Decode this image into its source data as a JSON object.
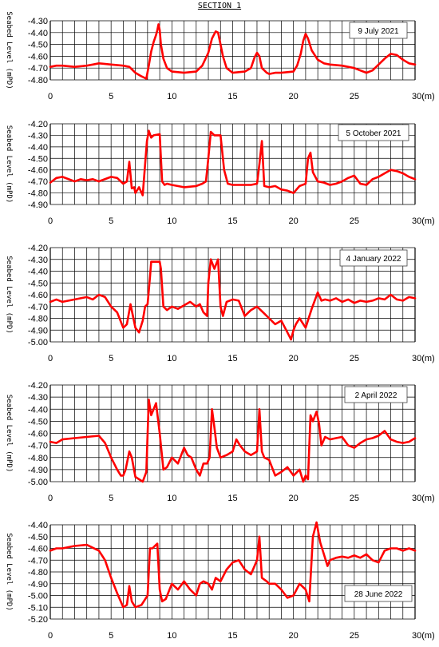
{
  "figure": {
    "title": "SECTION 1"
  },
  "colors": {
    "profile": "#ff0000",
    "grid": "#000000"
  },
  "chart_data": [
    {
      "type": "line",
      "date_label": "9 July 2021",
      "ylabel": "Seabed Level (mPD)",
      "xlim": [
        0,
        30
      ],
      "ylim": [
        -4.8,
        -4.3
      ],
      "yticks": [
        -4.3,
        -4.4,
        -4.5,
        -4.6,
        -4.7,
        -4.8
      ],
      "xticks": [
        0,
        5,
        10,
        15,
        20,
        25,
        30
      ],
      "xtick_labels": [
        "0",
        "5",
        "10",
        "15",
        "20",
        "25",
        "30(m)"
      ],
      "grid": true,
      "series": [
        {
          "x": [
            0,
            0.5,
            1,
            2,
            3,
            3.5,
            4,
            5,
            6,
            6.5,
            7,
            7.5,
            7.9,
            8.1,
            8.3,
            8.5,
            8.7,
            8.8,
            8.9,
            9.0,
            9.1,
            9.3,
            9.6,
            10,
            11,
            12,
            12.5,
            13,
            13.3,
            13.6,
            13.8,
            14,
            14.2,
            14.5,
            15,
            16,
            16.5,
            16.8,
            17,
            17.2,
            17.4,
            17.8,
            18,
            18.5,
            19,
            20,
            20.3,
            20.6,
            20.8,
            21,
            21.2,
            21.5,
            22,
            22.5,
            23,
            24,
            25,
            25.5,
            26,
            26.5,
            27,
            27.5,
            28,
            28.5,
            29,
            29.5,
            30
          ],
          "y": [
            -4.69,
            -4.68,
            -4.68,
            -4.69,
            -4.68,
            -4.67,
            -4.66,
            -4.67,
            -4.68,
            -4.69,
            -4.74,
            -4.77,
            -4.79,
            -4.68,
            -4.56,
            -4.48,
            -4.42,
            -4.38,
            -4.33,
            -4.38,
            -4.5,
            -4.62,
            -4.7,
            -4.73,
            -4.74,
            -4.73,
            -4.68,
            -4.57,
            -4.45,
            -4.39,
            -4.4,
            -4.5,
            -4.6,
            -4.7,
            -4.74,
            -4.73,
            -4.7,
            -4.61,
            -4.57,
            -4.6,
            -4.7,
            -4.74,
            -4.75,
            -4.74,
            -4.74,
            -4.73,
            -4.68,
            -4.58,
            -4.47,
            -4.41,
            -4.45,
            -4.55,
            -4.63,
            -4.66,
            -4.67,
            -4.68,
            -4.7,
            -4.72,
            -4.74,
            -4.72,
            -4.67,
            -4.62,
            -4.58,
            -4.59,
            -4.63,
            -4.66,
            -4.67
          ]
        }
      ]
    },
    {
      "type": "line",
      "date_label": "5 October 2021",
      "ylabel": "Seabed Level (mPD)",
      "xlim": [
        0,
        30
      ],
      "ylim": [
        -4.9,
        -4.2
      ],
      "yticks": [
        -4.2,
        -4.3,
        -4.4,
        -4.5,
        -4.6,
        -4.7,
        -4.8,
        -4.9
      ],
      "xticks": [
        0,
        5,
        10,
        15,
        20,
        25,
        30
      ],
      "xtick_labels": [
        "0",
        "5",
        "10",
        "15",
        "20",
        "25",
        "30(m)"
      ],
      "grid": true,
      "series": [
        {
          "x": [
            0,
            0.5,
            1,
            2,
            2.5,
            3,
            3.5,
            4,
            5,
            5.5,
            6,
            6.3,
            6.5,
            6.7,
            6.9,
            7,
            7.3,
            7.6,
            7.8,
            7.95,
            8.1,
            8.3,
            8.5,
            9,
            9.2,
            9.4,
            9.6,
            10,
            11,
            12,
            12.5,
            12.8,
            13,
            13.2,
            13.5,
            14,
            14.3,
            14.6,
            15,
            15.5,
            16,
            16.5,
            17,
            17.2,
            17.4,
            17.6,
            18,
            18.5,
            19,
            19.5,
            20,
            20.5,
            21,
            21.2,
            21.4,
            21.6,
            22,
            22.5,
            23,
            23.5,
            24,
            24.5,
            25,
            25.5,
            26,
            26.5,
            27,
            27.5,
            28,
            28.5,
            29,
            29.5,
            30
          ],
          "y": [
            -4.71,
            -4.67,
            -4.66,
            -4.7,
            -4.68,
            -4.69,
            -4.68,
            -4.7,
            -4.66,
            -4.67,
            -4.72,
            -4.7,
            -4.53,
            -4.76,
            -4.75,
            -4.8,
            -4.75,
            -4.82,
            -4.55,
            -4.35,
            -4.26,
            -4.32,
            -4.3,
            -4.29,
            -4.7,
            -4.73,
            -4.72,
            -4.73,
            -4.75,
            -4.74,
            -4.72,
            -4.7,
            -4.5,
            -4.27,
            -4.3,
            -4.3,
            -4.6,
            -4.72,
            -4.73,
            -4.73,
            -4.73,
            -4.73,
            -4.72,
            -4.55,
            -4.35,
            -4.74,
            -4.75,
            -4.74,
            -4.77,
            -4.78,
            -4.8,
            -4.74,
            -4.72,
            -4.5,
            -4.45,
            -4.62,
            -4.7,
            -4.71,
            -4.73,
            -4.72,
            -4.7,
            -4.67,
            -4.65,
            -4.72,
            -4.73,
            -4.68,
            -4.66,
            -4.63,
            -4.6,
            -4.61,
            -4.63,
            -4.66,
            -4.68
          ]
        }
      ]
    },
    {
      "type": "line",
      "date_label": "4 January 2022",
      "ylabel": "Seabed Level (mPD)",
      "xlim": [
        0,
        30
      ],
      "ylim": [
        -5.0,
        -4.2
      ],
      "yticks": [
        -4.2,
        -4.3,
        -4.4,
        -4.5,
        -4.6,
        -4.7,
        -4.8,
        -4.9,
        -5.0
      ],
      "xticks": [
        0,
        5,
        10,
        15,
        20,
        25,
        30
      ],
      "xtick_labels": [
        "0",
        "5",
        "10",
        "15",
        "20",
        "25",
        "30(m)"
      ],
      "grid": true,
      "series": [
        {
          "x": [
            0,
            0.5,
            1,
            2,
            3,
            3.5,
            4,
            4.5,
            5,
            5.5,
            6,
            6.3,
            6.6,
            7,
            7.3,
            7.6,
            7.8,
            8,
            8.2,
            8.3,
            8.5,
            9,
            9.1,
            9.3,
            9.6,
            10,
            10.5,
            11,
            11.5,
            12,
            12.3,
            12.6,
            12.9,
            13,
            13.2,
            13.5,
            13.8,
            14,
            14.2,
            14.5,
            15,
            15.5,
            16,
            16.5,
            17,
            17.5,
            18,
            18.5,
            19,
            19.5,
            19.8,
            20,
            20.2,
            20.5,
            21,
            21.5,
            22,
            22.3,
            22.6,
            23,
            23.5,
            24,
            24.5,
            25,
            25.5,
            26,
            26.5,
            27,
            27.5,
            28,
            28.5,
            29,
            29.5,
            30
          ],
          "y": [
            -4.66,
            -4.64,
            -4.66,
            -4.64,
            -4.62,
            -4.64,
            -4.6,
            -4.62,
            -4.7,
            -4.75,
            -4.88,
            -4.85,
            -4.68,
            -4.88,
            -4.92,
            -4.82,
            -4.7,
            -4.68,
            -4.45,
            -4.32,
            -4.32,
            -4.32,
            -4.38,
            -4.7,
            -4.73,
            -4.7,
            -4.72,
            -4.69,
            -4.66,
            -4.7,
            -4.68,
            -4.75,
            -4.78,
            -4.5,
            -4.3,
            -4.38,
            -4.3,
            -4.7,
            -4.78,
            -4.66,
            -4.64,
            -4.65,
            -4.78,
            -4.73,
            -4.7,
            -4.75,
            -4.8,
            -4.85,
            -4.82,
            -4.92,
            -4.98,
            -4.9,
            -4.85,
            -4.8,
            -4.88,
            -4.72,
            -4.58,
            -4.65,
            -4.64,
            -4.65,
            -4.63,
            -4.66,
            -4.64,
            -4.67,
            -4.65,
            -4.66,
            -4.65,
            -4.63,
            -4.64,
            -4.6,
            -4.64,
            -4.65,
            -4.62,
            -4.63
          ]
        }
      ]
    },
    {
      "type": "line",
      "date_label": "2 April 2022",
      "ylabel": "Seabed Level (mPD)",
      "xlim": [
        0,
        30
      ],
      "ylim": [
        -5.0,
        -4.2
      ],
      "yticks": [
        -4.2,
        -4.3,
        -4.4,
        -4.5,
        -4.6,
        -4.7,
        -4.8,
        -4.9,
        -5.0
      ],
      "xticks": [
        0,
        5,
        10,
        15,
        20,
        25,
        30
      ],
      "xtick_labels": [
        "0",
        "5",
        "10",
        "15",
        "20",
        "25",
        "30(m)"
      ],
      "grid": true,
      "series": [
        {
          "x": [
            0,
            0.5,
            1,
            2,
            3,
            4,
            4.5,
            5,
            5.5,
            5.8,
            6,
            6.2,
            6.5,
            6.7,
            7,
            7.3,
            7.6,
            7.9,
            8.1,
            8.3,
            8.5,
            8.7,
            9,
            9.3,
            9.6,
            10,
            10.5,
            11,
            11.3,
            11.6,
            12,
            12.3,
            12.6,
            12.9,
            13.1,
            13.3,
            13.5,
            13.7,
            14,
            14.5,
            15,
            15.3,
            15.6,
            16,
            16.5,
            17,
            17.2,
            17.4,
            17.6,
            18,
            18.5,
            19,
            19.5,
            20,
            20.5,
            20.8,
            21,
            21.2,
            21.4,
            21.6,
            21.9,
            22.1,
            22.3,
            22.6,
            23,
            23.5,
            24,
            24.5,
            25,
            25.5,
            26,
            26.5,
            27,
            27.5,
            28,
            28.5,
            29,
            29.5,
            30
          ],
          "y": [
            -4.67,
            -4.68,
            -4.65,
            -4.64,
            -4.63,
            -4.62,
            -4.68,
            -4.8,
            -4.9,
            -4.95,
            -4.95,
            -4.9,
            -4.75,
            -4.8,
            -4.96,
            -4.98,
            -5.0,
            -4.92,
            -4.32,
            -4.45,
            -4.4,
            -4.35,
            -4.6,
            -4.9,
            -4.88,
            -4.8,
            -4.85,
            -4.72,
            -4.78,
            -4.8,
            -4.9,
            -4.95,
            -4.85,
            -4.85,
            -4.8,
            -4.4,
            -4.55,
            -4.72,
            -4.8,
            -4.78,
            -4.75,
            -4.65,
            -4.7,
            -4.75,
            -4.78,
            -4.75,
            -4.4,
            -4.75,
            -4.8,
            -4.82,
            -4.95,
            -4.92,
            -4.88,
            -4.95,
            -4.9,
            -5.0,
            -4.95,
            -4.98,
            -4.45,
            -4.5,
            -4.42,
            -4.52,
            -4.7,
            -4.63,
            -4.65,
            -4.64,
            -4.63,
            -4.7,
            -4.72,
            -4.68,
            -4.65,
            -4.64,
            -4.62,
            -4.58,
            -4.65,
            -4.67,
            -4.68,
            -4.67,
            -4.64
          ]
        }
      ]
    },
    {
      "type": "line",
      "date_label": "28 June 2022",
      "ylabel": "Seabed Level (mPD)",
      "xlim": [
        0,
        30
      ],
      "ylim": [
        -5.2,
        -4.4
      ],
      "yticks": [
        -4.4,
        -4.5,
        -4.6,
        -4.7,
        -4.8,
        -4.9,
        -5.0,
        -5.1,
        -5.2
      ],
      "xticks": [
        0,
        5,
        10,
        15,
        20,
        25,
        30
      ],
      "xtick_labels": [
        "0",
        "5",
        "10",
        "15",
        "20",
        "25",
        "30(m)"
      ],
      "grid": true,
      "series": [
        {
          "x": [
            0,
            0.5,
            1,
            2,
            3,
            4,
            4.5,
            5,
            5.5,
            6,
            6.3,
            6.5,
            6.7,
            7,
            7.5,
            8,
            8.2,
            8.4,
            8.6,
            8.8,
            9,
            9.2,
            9.5,
            10,
            10.5,
            11,
            11.5,
            12,
            12.3,
            12.6,
            13,
            13.3,
            13.6,
            14,
            14.5,
            15,
            15.5,
            16,
            16.5,
            17,
            17.2,
            17.4,
            17.8,
            18,
            18.5,
            19,
            19.5,
            20,
            20.5,
            21,
            21.3,
            21.6,
            21.9,
            22.2,
            22.5,
            22.8,
            23,
            23.5,
            24,
            24.5,
            25,
            25.5,
            26,
            26.5,
            27,
            27.5,
            28,
            28.5,
            29,
            29.5,
            30
          ],
          "y": [
            -4.62,
            -4.6,
            -4.6,
            -4.58,
            -4.57,
            -4.62,
            -4.7,
            -4.85,
            -4.98,
            -5.1,
            -5.08,
            -4.92,
            -5.05,
            -5.1,
            -5.08,
            -5.0,
            -4.6,
            -4.6,
            -4.58,
            -4.56,
            -4.95,
            -5.05,
            -5.03,
            -4.9,
            -4.95,
            -4.88,
            -4.95,
            -5.0,
            -4.9,
            -4.88,
            -4.9,
            -4.95,
            -4.85,
            -4.88,
            -4.78,
            -4.72,
            -4.7,
            -4.78,
            -4.82,
            -4.7,
            -4.5,
            -4.85,
            -4.88,
            -4.9,
            -4.9,
            -4.95,
            -5.02,
            -5.0,
            -4.9,
            -4.95,
            -5.05,
            -4.5,
            -4.38,
            -4.55,
            -4.65,
            -4.75,
            -4.7,
            -4.68,
            -4.67,
            -4.68,
            -4.66,
            -4.68,
            -4.65,
            -4.7,
            -4.72,
            -4.62,
            -4.6,
            -4.6,
            -4.62,
            -4.6,
            -4.62
          ]
        }
      ]
    }
  ]
}
